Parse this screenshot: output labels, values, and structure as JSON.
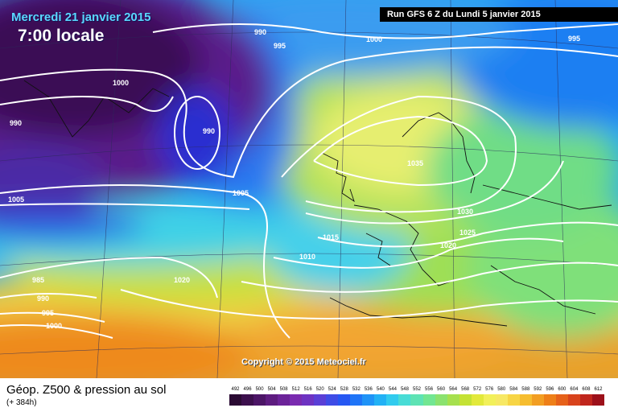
{
  "header": {
    "date": "Mercredi 21 janvier 2015",
    "time": "7:00 locale",
    "run": "Run GFS 6 Z du Lundi 5 janvier 2015"
  },
  "copyright": "Copyright © 2015 Meteociel.fr",
  "footer": {
    "title": "Géop. Z500 & pression au sol",
    "subtitle": "(+ 384h)"
  },
  "legend": {
    "values": [
      "492",
      "496",
      "500",
      "504",
      "508",
      "512",
      "516",
      "520",
      "524",
      "528",
      "532",
      "536",
      "540",
      "544",
      "548",
      "552",
      "556",
      "560",
      "564",
      "568",
      "572",
      "576",
      "580",
      "584",
      "588",
      "592",
      "596",
      "600",
      "604",
      "608",
      "612"
    ],
    "colors": [
      "#2a0a33",
      "#3c0f4d",
      "#4c1566",
      "#5e1c80",
      "#6c2399",
      "#7a2bb0",
      "#6e33c2",
      "#5a3fd6",
      "#3e4ce6",
      "#2657f2",
      "#1f74f7",
      "#1f93f7",
      "#22b1f5",
      "#31cbee",
      "#48dcd6",
      "#5ee3b4",
      "#72e692",
      "#8be26f",
      "#a6e04e",
      "#c4e234",
      "#e2e93b",
      "#f2f05a",
      "#f7e864",
      "#f7d545",
      "#f6bd2f",
      "#f29e22",
      "#ee7f18",
      "#e6611a",
      "#d8431c",
      "#c0261d",
      "#9c101a"
    ],
    "isobars": [
      "990",
      "995",
      "1000",
      "995",
      "1000",
      "990",
      "990",
      "1005",
      "1005",
      "985",
      "990",
      "995",
      "1000",
      "1020",
      "1035",
      "1030",
      "1015",
      "1025",
      "1010",
      "1020"
    ]
  },
  "icons": {
    "gridline": "graticule-lines",
    "coast": "coastline"
  }
}
